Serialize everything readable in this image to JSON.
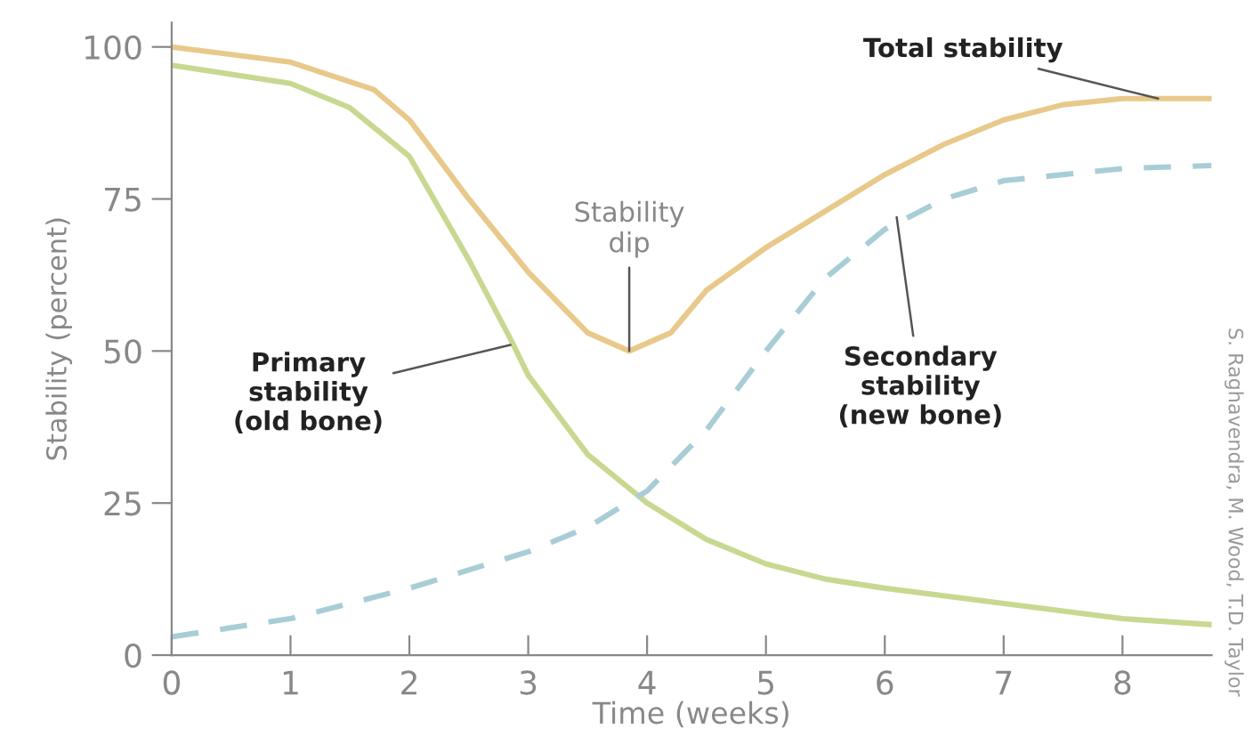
{
  "chart_data": {
    "type": "line",
    "xlabel": "Time (weeks)",
    "ylabel": "Stability (percent)",
    "xlim": [
      0,
      8.75
    ],
    "ylim": [
      0,
      104
    ],
    "xticks": [
      0,
      1,
      2,
      3,
      4,
      5,
      6,
      7,
      8
    ],
    "yticks": [
      0,
      25,
      50,
      75,
      100
    ],
    "grid": false,
    "legend": false,
    "marker": "none",
    "series": [
      {
        "color": "#e8c98a",
        "line_style": "solid",
        "x": [
          0,
          1,
          1.7,
          2,
          2.5,
          3,
          3.5,
          3.85,
          4.2,
          4.5,
          5,
          5.5,
          6,
          6.5,
          7,
          7.5,
          8,
          8.75
        ],
        "values": [
          100,
          97.5,
          93,
          88,
          75,
          63,
          53,
          50,
          53,
          60,
          67,
          73,
          79,
          84,
          88,
          90.5,
          91.5,
          91.5
        ]
      },
      {
        "color": "#c8d890",
        "line_style": "solid",
        "x": [
          0,
          1,
          1.5,
          2,
          2.5,
          2.85,
          3,
          3.5,
          4,
          4.5,
          5,
          5.5,
          6,
          7,
          8,
          8.75
        ],
        "values": [
          97,
          94,
          90,
          82,
          65,
          52,
          46,
          33,
          25,
          19,
          15,
          12.5,
          11,
          8.5,
          6,
          5
        ]
      },
      {
        "color": "#a8cdd6",
        "line_style": "dashed",
        "x": [
          0,
          1,
          2,
          3,
          3.5,
          4,
          4.5,
          5,
          5.5,
          6,
          6.5,
          7,
          8,
          8.75
        ],
        "values": [
          3,
          6,
          11,
          17,
          21,
          27,
          37,
          50,
          62,
          70,
          75,
          78,
          80,
          80.5
        ]
      }
    ],
    "annotations": [
      {
        "text": "Total stability",
        "x": 8.3,
        "y": 91.5
      },
      {
        "text": "Stability\ndip",
        "x": 3.85,
        "y": 50
      },
      {
        "text": "Primary\nstability\n(old bone)",
        "x": 2.85,
        "y": 51
      },
      {
        "text": "Secondary\nstability\n(new bone)",
        "x": 6.1,
        "y": 72
      },
      "S. Raghavendra, M. Wood, T.D. Taylor"
    ]
  }
}
